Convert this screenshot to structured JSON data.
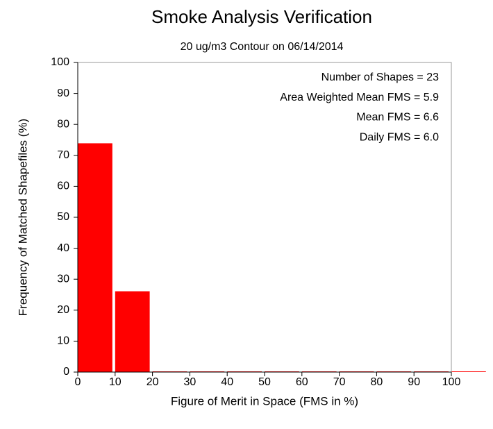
{
  "chart_data": {
    "type": "histogram",
    "title": "Smoke Analysis Verification",
    "subtitle": "20 ug/m3 Contour on 06/14/2014",
    "x_label": "Figure of Merit in Space (FMS in %)",
    "y_label": "Frequency of Matched Shapefiles (%)",
    "bins": [
      0,
      10,
      20,
      30,
      40,
      50,
      60,
      70,
      80,
      90,
      100,
      110
    ],
    "values": [
      73.9,
      26.1,
      0,
      0,
      0,
      0,
      0,
      0,
      0,
      0,
      0
    ],
    "color": "#ff0000",
    "xlim": [
      0,
      100
    ],
    "ylim": [
      0,
      100
    ],
    "xticks": [
      0,
      10,
      20,
      30,
      40,
      50,
      60,
      70,
      80,
      90,
      100
    ],
    "yticks": [
      0,
      10,
      20,
      30,
      40,
      50,
      60,
      70,
      80,
      90,
      100
    ],
    "annotations": [
      "Number of Shapes = 23",
      "Area Weighted Mean FMS = 5.9",
      "Mean FMS = 6.6",
      "Daily FMS = 6.0"
    ]
  }
}
